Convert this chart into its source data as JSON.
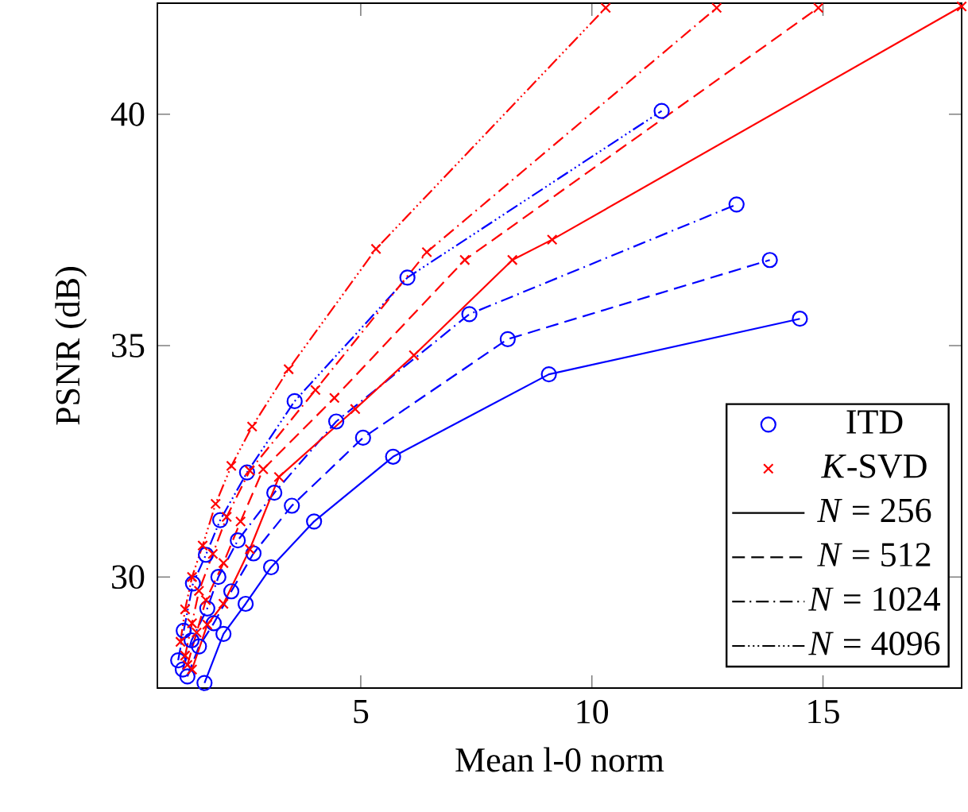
{
  "chart_data": {
    "type": "line",
    "xlabel": "Mean l-0 norm",
    "ylabel": "PSNR (dB)",
    "xlim": [
      0.6,
      18
    ],
    "ylim": [
      27.6,
      42.4
    ],
    "xticks": [
      5,
      10,
      15
    ],
    "yticks": [
      30,
      35,
      40
    ],
    "legend": "bottom right",
    "grid": false,
    "series": [
      {
        "color": "#0000ff",
        "marker": "circle",
        "line_style": "solid",
        "x": [
          1.62,
          2.03,
          2.51,
          3.06,
          3.99,
          5.7,
          9.07,
          14.5
        ],
        "values": [
          27.71,
          28.77,
          29.42,
          30.21,
          31.2,
          32.6,
          34.38,
          35.58
        ]
      },
      {
        "color": "#0000ff",
        "marker": "circle",
        "line_style": "dashed",
        "x": [
          1.25,
          1.5,
          1.82,
          2.2,
          2.68,
          3.51,
          5.05,
          8.18,
          13.85
        ],
        "values": [
          27.85,
          28.5,
          29.0,
          29.69,
          30.51,
          31.54,
          33.01,
          35.14,
          36.85
        ]
      },
      {
        "color": "#0000ff",
        "marker": "circle",
        "line_style": "dashdot",
        "x": [
          1.15,
          1.34,
          1.68,
          1.92,
          2.34,
          3.13,
          4.47,
          7.35,
          13.13
        ],
        "values": [
          28.0,
          28.63,
          29.32,
          30.0,
          30.79,
          31.82,
          33.36,
          35.68,
          38.05
        ]
      },
      {
        "color": "#0000ff",
        "marker": "circle",
        "line_style": "dashdotdot",
        "x": [
          1.05,
          1.17,
          1.37,
          1.65,
          1.96,
          2.54,
          3.57,
          6.01,
          11.51
        ],
        "values": [
          28.2,
          28.84,
          29.86,
          30.48,
          31.23,
          32.26,
          33.8,
          36.47,
          40.07
        ]
      },
      {
        "color": "#ff0000",
        "marker": "cross",
        "line_style": "solid",
        "x": [
          1.35,
          1.68,
          2.03,
          2.6,
          3.23,
          4.88,
          6.15,
          8.28,
          9.14,
          18
        ],
        "values": [
          28.0,
          28.97,
          29.42,
          30.6,
          32.16,
          33.63,
          34.79,
          36.85,
          37.29,
          42.33
        ]
      },
      {
        "color": "#ff0000",
        "marker": "cross",
        "line_style": "dashed",
        "x": [
          1.25,
          1.45,
          1.65,
          2.03,
          2.4,
          2.89,
          4.43,
          7.25,
          14.9
        ],
        "values": [
          28.1,
          28.8,
          29.5,
          30.3,
          31.2,
          32.33,
          33.87,
          36.85,
          42.3
        ]
      },
      {
        "color": "#ff0000",
        "marker": "cross",
        "line_style": "dashdot",
        "x": [
          1.2,
          1.35,
          1.5,
          1.8,
          2.1,
          2.6,
          4.02,
          6.43,
          12.7
        ],
        "values": [
          28.3,
          29.0,
          29.7,
          30.5,
          31.3,
          32.3,
          34.04,
          37.02,
          42.3
        ]
      },
      {
        "color": "#ff0000",
        "marker": "cross",
        "line_style": "dashdotdot",
        "x": [
          1.1,
          1.2,
          1.35,
          1.58,
          1.86,
          2.2,
          2.65,
          3.44,
          5.33,
          10.3
        ],
        "values": [
          28.6,
          29.3,
          30.0,
          30.68,
          31.58,
          32.4,
          33.25,
          34.49,
          37.09,
          42.3
        ]
      },
      {
        "name": "ITD",
        "color": "#0000ff",
        "marker": "circle",
        "line_style": "none"
      },
      {
        "name": "*K*-SVD",
        "color": "#ff0000",
        "marker": "cross",
        "line_style": "none"
      },
      {
        "name": "*N* = 256",
        "color": "#000000",
        "marker": "none",
        "line_style": "solid"
      },
      {
        "name": "*N* = 512",
        "color": "#000000",
        "marker": "none",
        "line_style": "dashed"
      },
      {
        "name": "*N* = 1024",
        "color": "#000000",
        "marker": "none",
        "line_style": "dashdot"
      },
      {
        "name": "*N* = 4096",
        "color": "#000000",
        "marker": "none",
        "line_style": "dashdotdot"
      }
    ]
  }
}
